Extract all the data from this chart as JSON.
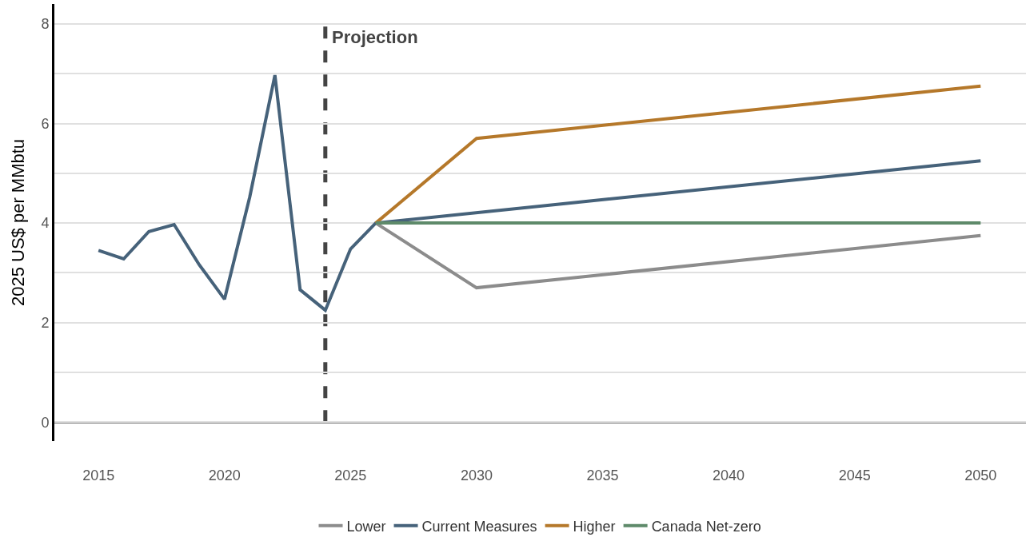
{
  "chart_data": {
    "type": "line",
    "ylabel": "2025 US$ per MMbtu",
    "series": [
      {
        "name": "Lower",
        "color": "#8c8c8c",
        "x": [
          2026,
          2030,
          2050
        ],
        "values": [
          4.0,
          2.7,
          3.75
        ]
      },
      {
        "name": "Current Measures",
        "color": "#46627a",
        "x": [
          2015,
          2016,
          2017,
          2018,
          2019,
          2020,
          2021,
          2022,
          2023,
          2024,
          2025,
          2026,
          2050
        ],
        "values": [
          3.45,
          3.28,
          3.83,
          3.97,
          3.16,
          2.47,
          4.52,
          6.97,
          2.66,
          2.25,
          3.48,
          4.0,
          5.25
        ]
      },
      {
        "name": "Higher",
        "color": "#b5782a",
        "x": [
          2026,
          2030,
          2050
        ],
        "values": [
          4.0,
          5.7,
          6.75
        ]
      },
      {
        "name": "Canada Net-zero",
        "color": "#5e8a6a",
        "x": [
          2026,
          2050
        ],
        "values": [
          4.0,
          4.0
        ]
      }
    ],
    "xlim": [
      2013.25,
      2051.8
    ],
    "xticks": [
      2015,
      2020,
      2025,
      2030,
      2035,
      2040,
      2045,
      2050
    ],
    "ylim": [
      -0.38,
      8.4
    ],
    "yticks": [
      0,
      {
        "value": 1,
        "label": null
      },
      2,
      {
        "value": 3,
        "label": null
      },
      4,
      {
        "value": 5,
        "label": null
      },
      6,
      {
        "value": 7,
        "label": null
      },
      8
    ],
    "ref_lines": [
      {
        "axis": "x",
        "value": 2024,
        "label": "Projection",
        "color": "#444444",
        "line_style": "dashed"
      },
      {
        "axis": "y",
        "value": 0,
        "color": "#000000",
        "line_style": "solid"
      }
    ],
    "grid": "y",
    "legend": "bottom",
    "marker": "none",
    "line_style": "solid"
  }
}
